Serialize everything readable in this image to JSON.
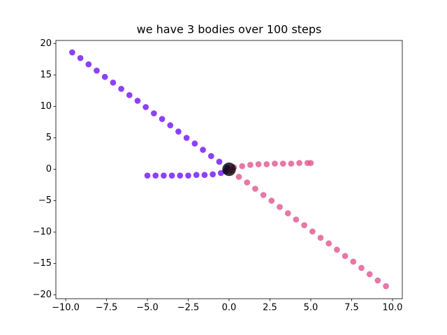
{
  "chart_data": {
    "type": "scatter",
    "title": "we have 3 bodies over 100 steps",
    "xlim": [
      -10.6,
      10.6
    ],
    "ylim": [
      -20.6,
      20.5
    ],
    "xticks": [
      {
        "value": -10,
        "label": "−10.0"
      },
      {
        "value": -7.5,
        "label": "−7.5"
      },
      {
        "value": -5,
        "label": "−5.0"
      },
      {
        "value": -2.5,
        "label": "−2.5"
      },
      {
        "value": 0,
        "label": "0.0"
      },
      {
        "value": 2.5,
        "label": "2.5"
      },
      {
        "value": 5,
        "label": "5.0"
      },
      {
        "value": 7.5,
        "label": "7.5"
      },
      {
        "value": 10,
        "label": "10.0"
      }
    ],
    "yticks": [
      {
        "value": -20,
        "label": "−20"
      },
      {
        "value": -15,
        "label": "−15"
      },
      {
        "value": -10,
        "label": "−10"
      },
      {
        "value": -5,
        "label": "−5"
      },
      0,
      5,
      10,
      15,
      20
    ],
    "series": [
      {
        "color": "#7010f8",
        "marker_size": 20,
        "x": [
          -9.6,
          -9.1,
          -8.6,
          -8.1,
          -7.6,
          -7.1,
          -6.6,
          -6.1,
          -5.6,
          -5.1,
          -4.6,
          -4.1,
          -3.6,
          -3.1,
          -2.6,
          -2.1,
          -1.6,
          -1.1,
          -0.6,
          -0.1
        ],
        "y": [
          18.6,
          17.7,
          16.7,
          15.7,
          14.7,
          13.8,
          12.8,
          11.8,
          10.9,
          9.9,
          8.9,
          8.0,
          7.0,
          6.0,
          5.0,
          4.1,
          3.1,
          2.1,
          1.2,
          0.2
        ]
      },
      {
        "color": "#7010f8",
        "marker_size": 20,
        "x": [
          -5,
          -4.5,
          -4,
          -3.5,
          -3,
          -2.5,
          -2,
          -1.5,
          -1,
          -0.5,
          -0.2
        ],
        "y": [
          -1.0,
          -1.0,
          -1.0,
          -1.0,
          -1.0,
          -1.0,
          -0.9,
          -0.9,
          -0.8,
          -0.6,
          -0.3
        ]
      },
      {
        "color": "#e05590",
        "marker_size": 20,
        "x": [
          0.1,
          0.6,
          1.1,
          1.6,
          2.1,
          2.6,
          3.1,
          3.6,
          4.1,
          4.6,
          5.1,
          5.6,
          6.1,
          6.6,
          7.1,
          7.6,
          8.1,
          8.6,
          9.1,
          9.6
        ],
        "y": [
          -0.2,
          -1.2,
          -2.1,
          -3.1,
          -4.1,
          -5.0,
          -6.0,
          -7.0,
          -8.0,
          -8.9,
          -9.9,
          -10.9,
          -11.8,
          -12.8,
          -13.8,
          -14.7,
          -15.7,
          -16.7,
          -17.7,
          -18.6
        ]
      },
      {
        "color": "#e05590",
        "marker_size": 20,
        "x": [
          0.3,
          0.8,
          1.3,
          1.8,
          2.3,
          2.8,
          3.3,
          3.8,
          4.3,
          4.8,
          5.0
        ],
        "y": [
          0.3,
          0.5,
          0.7,
          0.8,
          0.8,
          0.9,
          0.9,
          0.9,
          1.0,
          1.0,
          1.0
        ]
      },
      {
        "color": "#000000",
        "marker_size": 100,
        "x": [
          0
        ],
        "y": [
          0
        ]
      }
    ]
  }
}
